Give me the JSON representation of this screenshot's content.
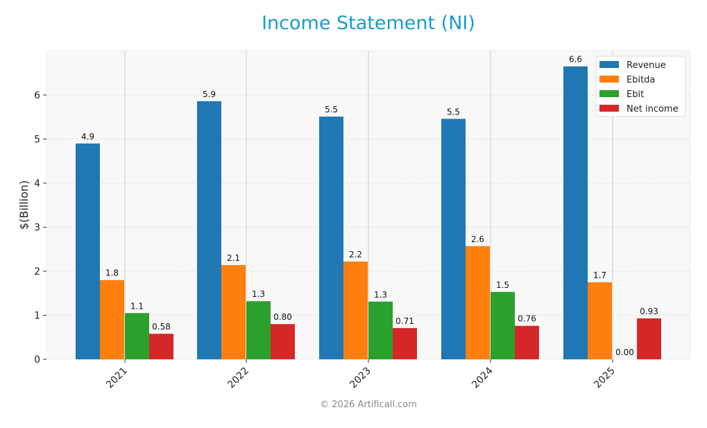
{
  "title": "Income Statement (NI)",
  "footer": "© 2026 Artificall.com",
  "chart_data": {
    "type": "bar",
    "title": "Income Statement (NI)",
    "xlabel": "",
    "ylabel": "$(Billion)",
    "ylim": [
      0,
      7.0
    ],
    "yticks": [
      0,
      1,
      2,
      3,
      4,
      5,
      6
    ],
    "categories": [
      "2021",
      "2022",
      "2023",
      "2024",
      "2025"
    ],
    "series": [
      {
        "name": "Revenue",
        "color": "#1f77b4",
        "values": [
          4.9,
          5.86,
          5.51,
          5.46,
          6.65
        ],
        "labels": [
          "4.9",
          "5.9",
          "5.5",
          "5.5",
          "6.6"
        ]
      },
      {
        "name": "Ebitda",
        "color": "#ff7f0e",
        "values": [
          1.8,
          2.14,
          2.22,
          2.57,
          1.75
        ],
        "labels": [
          "1.8",
          "2.1",
          "2.2",
          "2.6",
          "1.7"
        ]
      },
      {
        "name": "Ebit",
        "color": "#2ca02c",
        "values": [
          1.05,
          1.32,
          1.31,
          1.53,
          0.0
        ],
        "labels": [
          "1.1",
          "1.3",
          "1.3",
          "1.5",
          "0.00"
        ]
      },
      {
        "name": "Net income",
        "color": "#d62728",
        "values": [
          0.58,
          0.8,
          0.71,
          0.76,
          0.93
        ],
        "labels": [
          "0.58",
          "0.80",
          "0.71",
          "0.76",
          "0.93"
        ]
      }
    ],
    "grid": true,
    "legend_position": "upper right"
  }
}
